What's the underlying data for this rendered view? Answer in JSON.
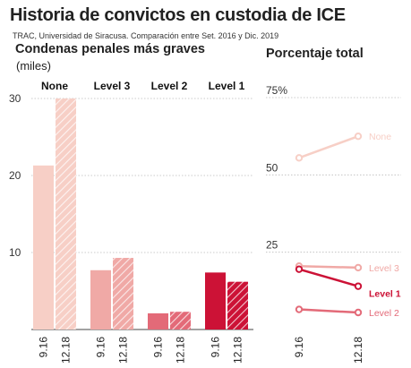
{
  "header": {
    "title": "Historia de convictos en custodia de ICE",
    "subtitle": "TRAC, Universidad de Siracusa. Comparación entre Set. 2016 y Dic. 2019"
  },
  "left_panel": {
    "title": "Condenas penales más graves",
    "unit": "(miles)"
  },
  "right_panel": {
    "title": "Porcentaje total"
  },
  "colors": {
    "None": "#f7cfc6",
    "Level 3": "#f0a9a6",
    "Level 2": "#e36a78",
    "Level 1": "#cc1236",
    "grid": "#bbbbbb"
  },
  "chart_data": [
    {
      "type": "bar",
      "title": "Condenas penales más graves",
      "ylabel": "(miles)",
      "ylim": [
        0,
        30
      ],
      "yticks": [
        10,
        20,
        30
      ],
      "groups": [
        "None",
        "Level 3",
        "Level 2",
        "Level 1"
      ],
      "x": [
        "9.16",
        "12.18"
      ],
      "series": [
        {
          "name": "None",
          "values": [
            21.3,
            30.0
          ]
        },
        {
          "name": "Level 3",
          "values": [
            7.7,
            9.3
          ]
        },
        {
          "name": "Level 2",
          "values": [
            2.1,
            2.3
          ]
        },
        {
          "name": "Level 1",
          "values": [
            7.4,
            6.2
          ]
        }
      ],
      "note": "12.18 bars drawn with diagonal hatching"
    },
    {
      "type": "line",
      "title": "Porcentaje total",
      "ylim": [
        0,
        75
      ],
      "yticks": [
        25,
        50,
        75
      ],
      "ytick_labels": [
        "25",
        "50",
        "75%"
      ],
      "x": [
        "9.16",
        "12.18"
      ],
      "series": [
        {
          "name": "None",
          "values": [
            55.5,
            62.5
          ]
        },
        {
          "name": "Level 3",
          "values": [
            20.5,
            20.0
          ]
        },
        {
          "name": "Level 1",
          "values": [
            19.5,
            14.0
          ]
        },
        {
          "name": "Level 2",
          "values": [
            6.5,
            5.5
          ]
        }
      ]
    }
  ]
}
